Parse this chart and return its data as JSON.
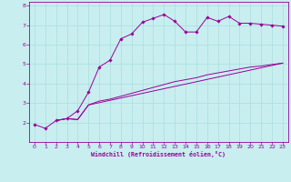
{
  "background_color": "#c8eef0",
  "grid_color": "#aadddd",
  "line_color": "#990099",
  "marker_color": "#990099",
  "xlabel": "Windchill (Refroidissement éolien,°C)",
  "xlim": [
    -0.5,
    23.5
  ],
  "ylim": [
    1.0,
    8.2
  ],
  "xticks": [
    0,
    1,
    2,
    3,
    4,
    5,
    6,
    7,
    8,
    9,
    10,
    11,
    12,
    13,
    14,
    15,
    16,
    17,
    18,
    19,
    20,
    21,
    22,
    23
  ],
  "yticks": [
    2,
    3,
    4,
    5,
    6,
    7,
    8
  ],
  "line1_x": [
    0,
    1,
    2,
    3,
    4,
    5,
    6,
    7,
    8,
    9,
    10,
    11,
    12,
    13,
    14,
    15,
    16,
    17,
    18,
    19,
    20,
    21,
    22,
    23
  ],
  "line1_y": [
    1.9,
    1.7,
    2.1,
    2.2,
    2.6,
    3.55,
    4.85,
    5.2,
    6.3,
    6.55,
    7.15,
    7.35,
    7.55,
    7.2,
    6.65,
    6.65,
    7.4,
    7.2,
    7.45,
    7.1,
    7.1,
    7.05,
    7.0,
    6.95
  ],
  "line2_x": [
    2,
    3,
    4,
    5,
    23
  ],
  "line2_y": [
    2.1,
    2.2,
    2.15,
    2.9,
    5.05
  ],
  "line3_x": [
    2,
    3,
    4,
    5,
    6,
    7,
    8,
    9,
    10,
    11,
    12,
    13,
    14,
    15,
    16,
    17,
    18,
    19,
    20,
    21,
    22,
    23
  ],
  "line3_y": [
    2.1,
    2.2,
    2.15,
    2.9,
    3.1,
    3.2,
    3.35,
    3.5,
    3.65,
    3.8,
    3.95,
    4.1,
    4.2,
    4.3,
    4.45,
    4.55,
    4.65,
    4.75,
    4.85,
    4.9,
    4.98,
    5.05
  ],
  "figsize": [
    3.2,
    2.0
  ],
  "dpi": 100
}
